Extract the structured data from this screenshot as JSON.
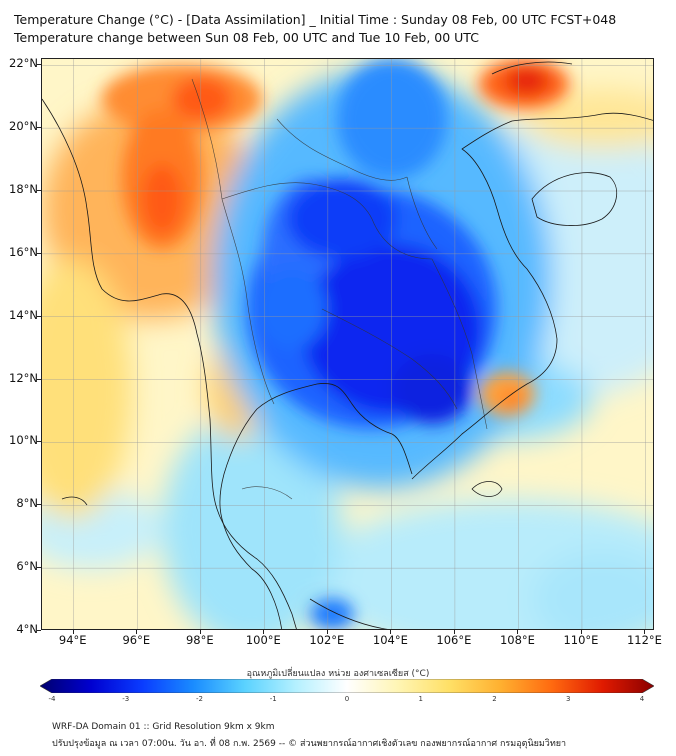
{
  "title_line1": "Temperature Change (°C) - [Data Assimilation] _ Initial Time : Sunday 08 Feb, 00 UTC FCST+048",
  "title_line2": "Temperature change between Sun 08 Feb, 00 UTC and Tue 10 Feb, 00 UTC",
  "map": {
    "lat_labels": [
      "22°N",
      "20°N",
      "18°N",
      "16°N",
      "14°N",
      "12°N",
      "10°N",
      "8°N",
      "6°N",
      "4°N"
    ],
    "lon_labels": [
      "94°E",
      "96°E",
      "98°E",
      "100°E",
      "102°E",
      "104°E",
      "106°E",
      "108°E",
      "110°E",
      "112°E"
    ],
    "lat_values": [
      22,
      20,
      18,
      16,
      14,
      12,
      10,
      8,
      6,
      4
    ],
    "lon_values": [
      94,
      96,
      98,
      100,
      102,
      104,
      106,
      108,
      110,
      112
    ],
    "lon_range": [
      93,
      112.3
    ],
    "lat_range": [
      4,
      22.2
    ]
  },
  "colorbar": {
    "title": "อุณหภูมิเปลี่ยนแปลง หน่วย องศาเซลเซียส (°C)",
    "ticks": [
      "-4",
      "-3",
      "-2",
      "-1",
      "0",
      "1",
      "2",
      "3",
      "4"
    ],
    "range": [
      -4,
      4
    ],
    "colors": [
      "#00006e",
      "#0000d0",
      "#0a3cff",
      "#1a8cff",
      "#5ad2ff",
      "#b4f0ff",
      "#ffffff",
      "#fff5b4",
      "#ffe066",
      "#ffb030",
      "#ff6a10",
      "#e01a00",
      "#8a0000"
    ]
  },
  "footer_line1": "WRF-DA Domain 01 :: Grid Resolution 9km x 9km",
  "footer_line2": "ปรับปรุงข้อมูล ณ เวลา 07:00น. วัน อา. ที่ 08 ก.พ. 2569 -- © ส่วนพยากรณ์อากาศเชิงตัวเลข กองพยากรณ์อากาศ กรมอุตุนิยมวิทยา"
}
